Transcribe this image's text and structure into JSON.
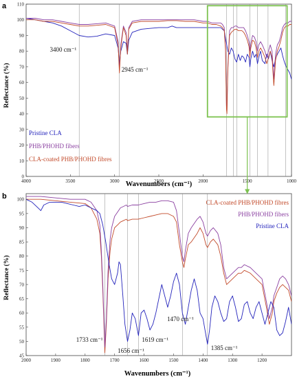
{
  "chart_data": [
    {
      "type": "line",
      "panel": "a",
      "xlabel": "Wavenumbers (cm⁻¹)",
      "ylabel": "Reflectance (%)",
      "xlim": [
        4000,
        1000
      ],
      "ylim": [
        0,
        110
      ],
      "x_ticks": [
        4000,
        3500,
        3000,
        2500,
        2000,
        1500,
        1000
      ],
      "y_ticks": [
        0,
        10,
        20,
        30,
        40,
        50,
        60,
        70,
        80,
        90,
        100,
        110
      ],
      "grid": false,
      "legend_position": "bottom-left",
      "colors": {
        "pristine": "#2222bb",
        "phb": "#8a3fa0",
        "cla_coated": "#c24a2a",
        "zoom_box": "#7cc24f"
      },
      "series": [
        {
          "name": "Pristine CLA",
          "key": "pristine",
          "x": [
            4000,
            3900,
            3800,
            3700,
            3600,
            3500,
            3400,
            3300,
            3200,
            3100,
            3000,
            2960,
            2945,
            2930,
            2900,
            2870,
            2855,
            2840,
            2800,
            2700,
            2600,
            2500,
            2400,
            2350,
            2300,
            2200,
            2100,
            2000,
            1950,
            1900,
            1850,
            1800,
            1780,
            1760,
            1745,
            1735,
            1720,
            1700,
            1680,
            1660,
            1640,
            1620,
            1600,
            1580,
            1560,
            1540,
            1520,
            1500,
            1480,
            1470,
            1460,
            1440,
            1420,
            1400,
            1385,
            1370,
            1350,
            1330,
            1300,
            1280,
            1260,
            1240,
            1220,
            1200,
            1180,
            1160,
            1140,
            1120,
            1100,
            1080,
            1060,
            1040,
            1020,
            1000
          ],
          "y": [
            101,
            100,
            99,
            98,
            96,
            93,
            90,
            89,
            89.5,
            91,
            90,
            82,
            72,
            80,
            86,
            85,
            78,
            87,
            92,
            94,
            94.5,
            95,
            95,
            96,
            95,
            95,
            95,
            95,
            95,
            95,
            95,
            95,
            94,
            93,
            88,
            85,
            80,
            78,
            82,
            80,
            75,
            73,
            78,
            74,
            77,
            76,
            73,
            78,
            76,
            70,
            75,
            80,
            76,
            78,
            72,
            76,
            80,
            74,
            72,
            78,
            75,
            80,
            74,
            70,
            75,
            78,
            80,
            82,
            77,
            73,
            70,
            68,
            66,
            62
          ]
        },
        {
          "name": "PHB/PHOHD fibers",
          "key": "phb",
          "x": [
            4000,
            3900,
            3800,
            3700,
            3600,
            3500,
            3400,
            3300,
            3200,
            3100,
            3000,
            2960,
            2945,
            2930,
            2900,
            2870,
            2855,
            2840,
            2800,
            2700,
            2600,
            2500,
            2400,
            2300,
            2200,
            2100,
            2000,
            1950,
            1900,
            1850,
            1800,
            1780,
            1760,
            1745,
            1735,
            1730,
            1720,
            1700,
            1680,
            1660,
            1640,
            1620,
            1600,
            1580,
            1560,
            1540,
            1520,
            1500,
            1480,
            1470,
            1460,
            1440,
            1420,
            1400,
            1385,
            1370,
            1350,
            1330,
            1300,
            1280,
            1260,
            1240,
            1220,
            1200,
            1180,
            1160,
            1140,
            1120,
            1100,
            1080,
            1060,
            1040,
            1020,
            1000
          ],
          "y": [
            101,
            101,
            100,
            100,
            99,
            98,
            97,
            97,
            97.5,
            98,
            96,
            86,
            68,
            84,
            96,
            92,
            80,
            95,
            99,
            100,
            100,
            100,
            100,
            100,
            100,
            100,
            99,
            99,
            98,
            98,
            98,
            97,
            95,
            82,
            45,
            42,
            70,
            93,
            95,
            95,
            96,
            96,
            95,
            95,
            95,
            95,
            93,
            90,
            86,
            80,
            85,
            90,
            89,
            86,
            80,
            84,
            86,
            84,
            80,
            76,
            80,
            84,
            80,
            62,
            78,
            84,
            86,
            90,
            95,
            97,
            98,
            98,
            99,
            99
          ]
        },
        {
          "name": "CLA-coated PHB/PHOHD fibres",
          "key": "cla_coated",
          "x": [
            4000,
            3900,
            3800,
            3700,
            3600,
            3500,
            3400,
            3300,
            3200,
            3100,
            3000,
            2960,
            2945,
            2930,
            2900,
            2870,
            2855,
            2840,
            2800,
            2700,
            2600,
            2500,
            2400,
            2300,
            2200,
            2100,
            2000,
            1950,
            1900,
            1850,
            1800,
            1780,
            1760,
            1745,
            1735,
            1730,
            1720,
            1700,
            1680,
            1660,
            1640,
            1620,
            1600,
            1580,
            1560,
            1540,
            1520,
            1500,
            1480,
            1470,
            1460,
            1440,
            1420,
            1400,
            1385,
            1370,
            1350,
            1330,
            1300,
            1280,
            1260,
            1240,
            1220,
            1200,
            1180,
            1160,
            1140,
            1120,
            1100,
            1080,
            1060,
            1040,
            1020,
            1000
          ],
          "y": [
            100,
            100,
            99,
            99,
            98,
            97,
            96,
            96,
            96.5,
            97,
            95,
            84,
            66,
            82,
            95,
            90,
            78,
            94,
            98,
            99,
            99,
            99,
            99.5,
            99.5,
            99,
            99,
            98,
            98,
            97,
            97,
            96,
            95,
            93,
            80,
            43,
            40,
            68,
            90,
            92,
            93,
            94,
            94,
            93,
            93,
            93,
            92,
            90,
            87,
            83,
            76,
            82,
            87,
            86,
            82,
            76,
            80,
            82,
            80,
            76,
            72,
            76,
            80,
            76,
            58,
            74,
            80,
            83,
            87,
            92,
            95,
            96,
            96,
            97,
            97
          ]
        }
      ],
      "annotations": [
        {
          "text": "3400 cm⁻¹",
          "x": 3400
        },
        {
          "text": "2945 cm⁻¹",
          "x": 2945
        }
      ],
      "reference_lines_x": [
        3400,
        2945,
        1733,
        1656,
        1619,
        1470,
        1385,
        1265,
        1065
      ],
      "zoom_region": {
        "x": [
          1950,
          1050
        ],
        "y": [
          38,
          109
        ]
      }
    },
    {
      "type": "line",
      "panel": "b",
      "xlabel": "Wavenumbers (cm⁻¹)",
      "ylabel": "Reflectance (%)",
      "xlim": [
        2000,
        1100
      ],
      "ylim": [
        45,
        102
      ],
      "x_ticks": [
        2000,
        1900,
        1800,
        1700,
        1600,
        1500,
        1400,
        1300,
        1200
      ],
      "y_ticks": [
        45,
        50,
        55,
        60,
        65,
        70,
        75,
        80,
        85,
        90,
        95,
        100
      ],
      "grid": false,
      "legend_position": "top-right",
      "series": [
        {
          "name": "CLA-coated PHB/PHOHD fibres",
          "key": "cla_coated",
          "x": [
            2000,
            1950,
            1900,
            1850,
            1800,
            1780,
            1760,
            1750,
            1745,
            1740,
            1735,
            1733,
            1728,
            1722,
            1715,
            1710,
            1700,
            1690,
            1680,
            1670,
            1660,
            1656,
            1640,
            1620,
            1600,
            1580,
            1560,
            1540,
            1520,
            1500,
            1490,
            1480,
            1470,
            1465,
            1460,
            1450,
            1440,
            1420,
            1410,
            1400,
            1390,
            1385,
            1375,
            1365,
            1350,
            1340,
            1330,
            1320,
            1310,
            1300,
            1290,
            1280,
            1270,
            1260,
            1240,
            1220,
            1200,
            1185,
            1175,
            1165,
            1160,
            1150,
            1140,
            1130,
            1120,
            1110,
            1100
          ],
          "y": [
            100,
            100,
            99.5,
            99,
            98.5,
            97,
            93,
            88,
            80,
            68,
            52,
            46,
            56,
            72,
            82,
            86,
            90,
            91,
            92,
            92.5,
            93,
            92.5,
            93,
            93,
            93.5,
            94,
            94.5,
            95,
            95,
            94,
            92,
            84,
            78,
            76,
            79,
            84,
            85,
            88,
            90,
            88,
            84,
            83,
            85,
            86,
            84,
            80,
            74,
            70,
            71,
            72,
            73,
            74,
            74,
            75,
            74,
            72,
            70,
            62,
            56,
            60,
            64,
            67,
            69,
            70,
            69,
            68,
            64
          ]
        },
        {
          "name": "PHB/PHOHD fibers",
          "key": "phb",
          "x": [
            2000,
            1950,
            1900,
            1850,
            1800,
            1780,
            1760,
            1750,
            1745,
            1740,
            1735,
            1733,
            1728,
            1722,
            1715,
            1710,
            1700,
            1690,
            1680,
            1670,
            1660,
            1656,
            1640,
            1620,
            1600,
            1580,
            1560,
            1540,
            1520,
            1500,
            1490,
            1480,
            1470,
            1465,
            1460,
            1450,
            1440,
            1420,
            1410,
            1400,
            1390,
            1385,
            1375,
            1365,
            1350,
            1340,
            1330,
            1320,
            1310,
            1300,
            1290,
            1280,
            1270,
            1260,
            1240,
            1220,
            1200,
            1185,
            1175,
            1165,
            1160,
            1150,
            1140,
            1130,
            1120,
            1110,
            1100
          ],
          "y": [
            101,
            101,
            100.5,
            100,
            100,
            99,
            96,
            91,
            82,
            70,
            54,
            48,
            58,
            75,
            86,
            90,
            94,
            95.5,
            97,
            97.5,
            98,
            97.5,
            98,
            98,
            98.5,
            99,
            99,
            99.5,
            99.5,
            99,
            96,
            88,
            80,
            78,
            82,
            88,
            90,
            93,
            94,
            92,
            88,
            87,
            89,
            90,
            88,
            84,
            76,
            72,
            73,
            74,
            75,
            76,
            76,
            77,
            76,
            74,
            72,
            64,
            58,
            62,
            66,
            69,
            72,
            73,
            72,
            70,
            66
          ]
        },
        {
          "name": "Pristine CLA",
          "key": "pristine",
          "x": [
            2000,
            1980,
            1960,
            1950,
            1940,
            1920,
            1900,
            1880,
            1860,
            1840,
            1820,
            1800,
            1790,
            1780,
            1770,
            1760,
            1750,
            1740,
            1730,
            1720,
            1710,
            1700,
            1690,
            1685,
            1680,
            1672,
            1665,
            1656,
            1648,
            1640,
            1630,
            1619,
            1610,
            1600,
            1590,
            1580,
            1570,
            1560,
            1550,
            1540,
            1530,
            1520,
            1510,
            1500,
            1490,
            1480,
            1470,
            1460,
            1450,
            1440,
            1430,
            1420,
            1410,
            1400,
            1390,
            1385,
            1378,
            1370,
            1360,
            1350,
            1340,
            1330,
            1320,
            1310,
            1300,
            1290,
            1280,
            1270,
            1260,
            1250,
            1240,
            1230,
            1220,
            1210,
            1200,
            1190,
            1180,
            1170,
            1160,
            1150,
            1140,
            1130,
            1120,
            1110,
            1100
          ],
          "y": [
            100,
            99,
            97,
            96,
            98,
            99,
            99,
            99,
            98.5,
            98,
            97.5,
            98,
            97.5,
            97,
            96.5,
            96,
            95,
            91,
            85,
            78,
            72,
            70,
            74,
            78,
            77,
            66,
            56,
            50,
            54,
            60,
            58,
            52,
            60,
            61,
            58,
            54,
            56,
            60,
            65,
            70,
            66,
            62,
            66,
            71,
            74,
            70,
            60,
            56,
            62,
            68,
            72,
            68,
            60,
            58,
            52,
            49,
            54,
            62,
            66,
            64,
            60,
            57,
            58,
            64,
            66,
            62,
            57,
            58,
            63,
            64,
            60,
            58,
            62,
            64,
            60,
            56,
            60,
            64,
            62,
            54,
            52,
            53,
            57,
            62,
            56
          ]
        }
      ],
      "annotations": [
        {
          "text": "1733 cm⁻¹",
          "x": 1733
        },
        {
          "text": "1656 cm⁻¹",
          "x": 1656
        },
        {
          "text": "1619 cm⁻¹",
          "x": 1619
        },
        {
          "text": "1470 cm⁻¹",
          "x": 1470
        },
        {
          "text": "1385 cm⁻¹",
          "x": 1385
        }
      ],
      "reference_lines_x": [
        1733,
        1656,
        1619,
        1470,
        1385
      ]
    }
  ]
}
